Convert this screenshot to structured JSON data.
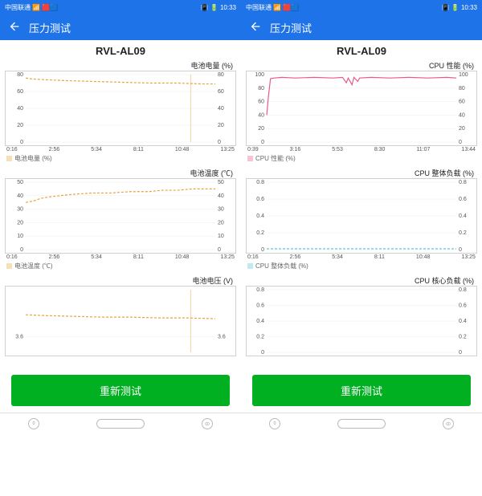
{
  "statusbar": {
    "carrier": "中国联通",
    "time": "10:33",
    "signal_icons": "📶",
    "battery_icons": "🔋"
  },
  "appbar": {
    "title": "压力测试"
  },
  "device": "RVL-AL09",
  "retest_label": "重新测试",
  "colors": {
    "header": "#1e73e8",
    "retest": "#00b020",
    "series_orange": "#e6a43c",
    "series_pink": "#e85a8a",
    "series_cyan": "#4fc3d9",
    "grid": "#eeeeee",
    "border": "#d0d0d0"
  },
  "left_charts": [
    {
      "title": "电池电量 (%)",
      "legend": "电池电量 (%)",
      "legend_color": "#e6a43c",
      "y_ticks": [
        0,
        20,
        40,
        60,
        80
      ],
      "y_right_ticks": [
        0,
        20,
        40,
        60,
        80
      ],
      "y_range": [
        0,
        80
      ],
      "x_labels": [
        "0:16",
        "2:56",
        "5:34",
        "8:11",
        "10:48",
        "13:25"
      ],
      "height": 92,
      "series": [
        {
          "color": "#e6a43c",
          "dash": "3,2",
          "width": 1.2,
          "points": [
            [
              0,
              76
            ],
            [
              3,
              75
            ],
            [
              10,
              74
            ],
            [
              20,
              73
            ],
            [
              35,
              72
            ],
            [
              50,
              71
            ],
            [
              65,
              70
            ],
            [
              80,
              70
            ],
            [
              93,
              69
            ],
            [
              100,
              69
            ]
          ]
        }
      ],
      "vline": {
        "x": 87,
        "color": "#e6a43c"
      }
    },
    {
      "title": "电池温度 (℃)",
      "legend": "电池温度 (℃)",
      "legend_color": "#e6a43c",
      "y_ticks": [
        0,
        10,
        20,
        30,
        40,
        50
      ],
      "y_right_ticks": [
        0,
        10,
        20,
        30,
        40,
        50
      ],
      "y_range": [
        0,
        50
      ],
      "x_labels": [
        "0:16",
        "2:56",
        "5:34",
        "8:11",
        "10:48",
        "13:25"
      ],
      "height": 92,
      "series": [
        {
          "color": "#e6a43c",
          "dash": "3,2",
          "width": 1.2,
          "points": [
            [
              0,
              35
            ],
            [
              4,
              36
            ],
            [
              8,
              38
            ],
            [
              12,
              39
            ],
            [
              18,
              40
            ],
            [
              25,
              41
            ],
            [
              35,
              42
            ],
            [
              45,
              42
            ],
            [
              55,
              43
            ],
            [
              65,
              43
            ],
            [
              72,
              44
            ],
            [
              80,
              44
            ],
            [
              88,
              45
            ],
            [
              95,
              45
            ],
            [
              100,
              45
            ]
          ]
        }
      ]
    },
    {
      "title": "电池电压 (V)",
      "legend": "",
      "legend_color": "#e6a43c",
      "y_ticks": [
        3.6
      ],
      "y_right_ticks": [
        3.6
      ],
      "y_range": [
        3.4,
        4.2
      ],
      "x_labels": [],
      "height": 86,
      "series": [
        {
          "color": "#e6a43c",
          "dash": "3,2",
          "width": 1.2,
          "points": [
            [
              0,
              3.88
            ],
            [
              10,
              3.87
            ],
            [
              25,
              3.86
            ],
            [
              40,
              3.85
            ],
            [
              55,
              3.85
            ],
            [
              70,
              3.84
            ],
            [
              85,
              3.84
            ],
            [
              100,
              3.83
            ]
          ]
        }
      ],
      "vline": {
        "x": 87,
        "color": "#e6a43c"
      }
    }
  ],
  "right_charts": [
    {
      "title": "CPU 性能 (%)",
      "legend": "CPU 性能 (%)",
      "legend_color": "#e85a8a",
      "y_ticks": [
        0,
        20,
        40,
        60,
        80,
        100
      ],
      "y_right_ticks": [
        0,
        20,
        40,
        60,
        80,
        100
      ],
      "y_range": [
        0,
        100
      ],
      "x_labels": [
        "0:39",
        "3:16",
        "5:53",
        "8:30",
        "11:07",
        "13:44"
      ],
      "height": 92,
      "series": [
        {
          "color": "#e85a8a",
          "dash": "",
          "width": 1.2,
          "points": [
            [
              0,
              40
            ],
            [
              1,
              70
            ],
            [
              2,
              94
            ],
            [
              4,
              95
            ],
            [
              8,
              96
            ],
            [
              15,
              95
            ],
            [
              25,
              96
            ],
            [
              35,
              95
            ],
            [
              40,
              96
            ],
            [
              42,
              88
            ],
            [
              43,
              95
            ],
            [
              45,
              85
            ],
            [
              46,
              96
            ],
            [
              48,
              90
            ],
            [
              49,
              95
            ],
            [
              55,
              96
            ],
            [
              65,
              95
            ],
            [
              75,
              96
            ],
            [
              85,
              95
            ],
            [
              95,
              96
            ],
            [
              100,
              95
            ]
          ]
        }
      ]
    },
    {
      "title": "CPU 整体负载 (%)",
      "legend": "CPU 整体负载 (%)",
      "legend_color": "#4fc3d9",
      "y_ticks": [
        0.0,
        0.2,
        0.4,
        0.6,
        0.8
      ],
      "y_right_ticks": [
        0.0,
        0.2,
        0.4,
        0.6,
        0.8
      ],
      "y_range": [
        0,
        0.8
      ],
      "x_labels": [
        "0:16",
        "2:56",
        "5:34",
        "8:11",
        "10:48",
        "13:25"
      ],
      "height": 92,
      "series": [
        {
          "color": "#4fc3d9",
          "dash": "3,2",
          "width": 1.2,
          "points": [
            [
              0,
              0.01
            ],
            [
              100,
              0.01
            ]
          ]
        }
      ]
    },
    {
      "title": "CPU 核心负载 (%)",
      "legend": "",
      "legend_color": "#4fc3d9",
      "y_ticks": [
        0.0,
        0.2,
        0.4,
        0.6,
        0.8
      ],
      "y_right_ticks": [
        0.0,
        0.2,
        0.4,
        0.6,
        0.8
      ],
      "y_range": [
        0,
        0.8
      ],
      "x_labels": [],
      "height": 86,
      "series": []
    }
  ]
}
